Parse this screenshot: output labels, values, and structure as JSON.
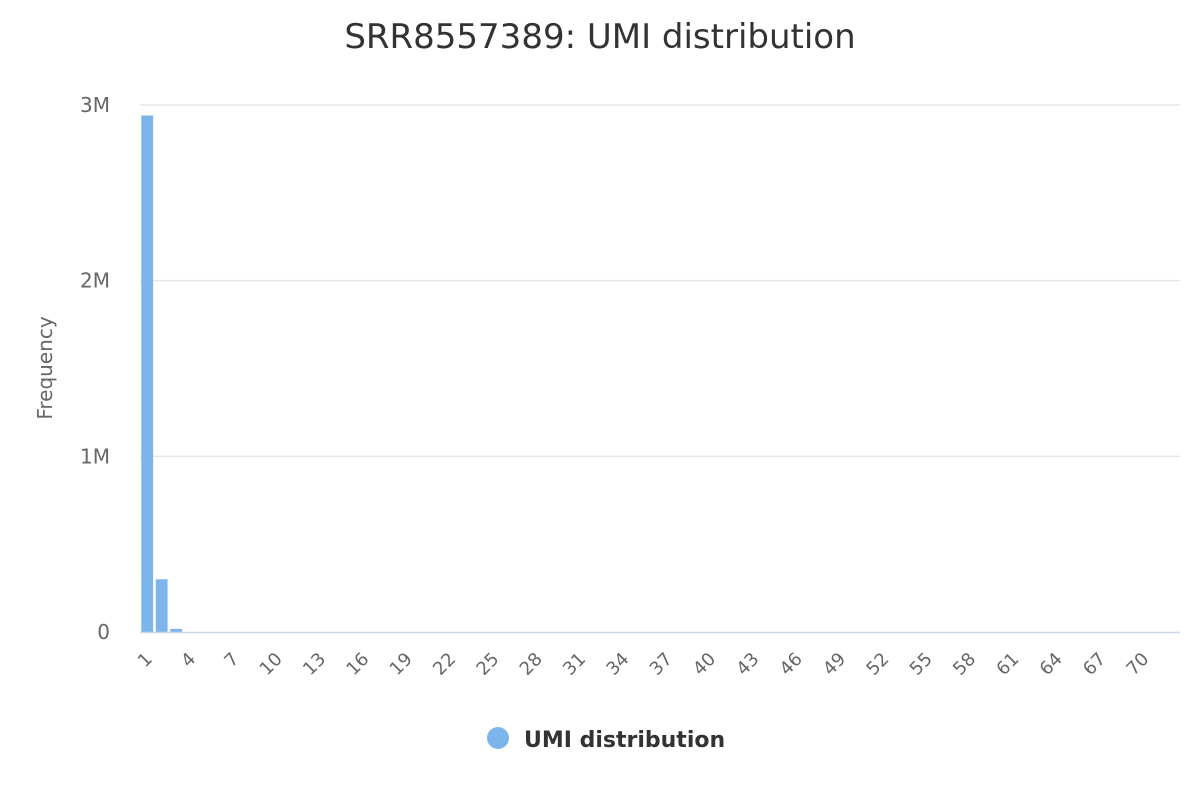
{
  "chart_data": {
    "type": "bar",
    "title": "SRR8557389: UMI distribution",
    "ylabel": "Frequency",
    "xlabel": "",
    "ylim": [
      0,
      3000000
    ],
    "yticks": [
      {
        "value": 0,
        "label": "0"
      },
      {
        "value": 1000000,
        "label": "1M"
      },
      {
        "value": 2000000,
        "label": "2M"
      },
      {
        "value": 3000000,
        "label": "3M"
      }
    ],
    "x_tick_labels": [
      "1",
      "4",
      "7",
      "10",
      "13",
      "16",
      "19",
      "22",
      "25",
      "28",
      "31",
      "34",
      "37",
      "40",
      "43",
      "46",
      "49",
      "52",
      "55",
      "58",
      "61",
      "64",
      "67",
      "70"
    ],
    "categories": [
      1,
      2,
      3,
      4,
      5,
      6,
      7,
      8,
      9,
      10,
      11,
      12,
      13,
      14,
      15,
      16,
      17,
      18,
      19,
      20,
      21,
      22,
      23,
      24,
      25,
      26,
      27,
      28,
      29,
      30,
      31,
      32,
      33,
      34,
      35,
      36,
      37,
      38,
      39,
      40,
      41,
      42,
      43,
      44,
      45,
      46,
      47,
      48,
      49,
      50,
      51,
      52,
      53,
      54,
      55,
      56,
      57,
      58,
      59,
      60,
      61,
      62,
      63,
      64,
      65,
      66,
      67,
      68,
      69,
      70,
      71,
      72
    ],
    "series": [
      {
        "name": "UMI distribution",
        "color": "#7cb5ec",
        "values": [
          2940000,
          300000,
          18000,
          3000,
          800,
          300,
          150,
          80,
          50,
          30,
          20,
          15,
          10,
          8,
          6,
          5,
          4,
          3,
          3,
          2,
          2,
          2,
          1,
          1,
          1,
          1,
          1,
          1,
          1,
          1,
          1,
          1,
          1,
          1,
          1,
          1,
          1,
          1,
          1,
          1,
          1,
          1,
          1,
          1,
          1,
          1,
          1,
          1,
          1,
          1,
          1,
          1,
          1,
          1,
          1,
          1,
          1,
          1,
          1,
          1,
          1,
          1,
          1,
          1,
          1,
          1,
          1,
          1,
          1,
          1,
          1,
          1
        ]
      }
    ],
    "legend_position": "bottom-center",
    "grid": true
  }
}
